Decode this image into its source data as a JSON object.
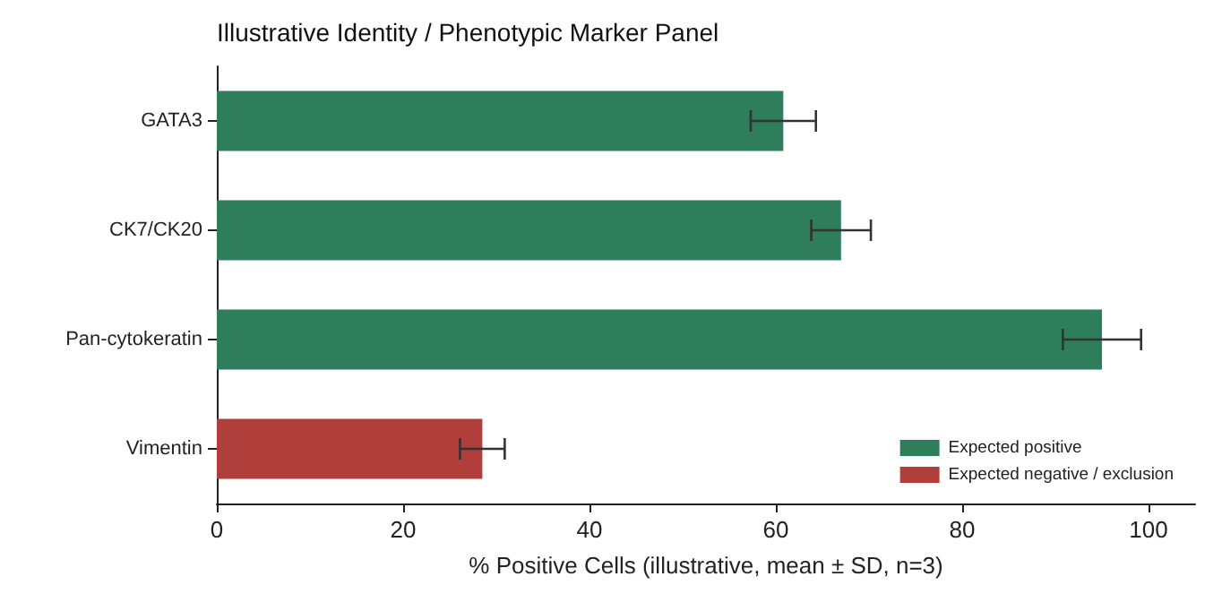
{
  "chart_data": {
    "type": "bar",
    "orientation": "horizontal",
    "title": "Illustrative Identity / Phenotypic Marker Panel",
    "xlabel": "% Positive Cells (illustrative, mean ± SD, n=3)",
    "categories": [
      "GATA3",
      "CK7/CK20",
      "Pan-cytokeratin",
      "Vimentin"
    ],
    "series": [
      {
        "name": "Expected positive",
        "color": "#2e7d5b",
        "values": [
          60.8,
          67,
          95,
          null
        ],
        "errors": [
          3.5,
          3.2,
          4.2,
          null
        ]
      },
      {
        "name": "Expected negative / exclusion",
        "color": "#b03f3c",
        "values": [
          null,
          null,
          null,
          28.5
        ],
        "errors": [
          null,
          null,
          null,
          2.4
        ]
      }
    ],
    "xlim": [
      0,
      105
    ],
    "xticks": [
      0,
      20,
      40,
      60,
      80,
      100
    ],
    "grid": false,
    "legend": "bottom right"
  }
}
